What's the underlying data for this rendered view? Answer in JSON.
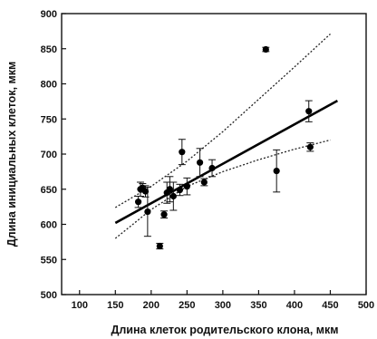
{
  "chart_data": {
    "type": "scatter",
    "xlabel": "Длина клеток  родительского клона, мкм",
    "ylabel": "Длина  инициальных клеток, мкм",
    "xlim": [
      75,
      500
    ],
    "ylim": [
      500,
      900
    ],
    "x_ticks": [
      "100",
      "150",
      "200",
      "250",
      "300",
      "350",
      "400",
      "450",
      "500"
    ],
    "y_ticks": [
      "500",
      "550",
      "600",
      "650",
      "700",
      "750",
      "800",
      "850",
      "900"
    ],
    "grid": false,
    "points": [
      {
        "x": 182,
        "y": 632,
        "err": 8
      },
      {
        "x": 185,
        "y": 650,
        "err": 10
      },
      {
        "x": 188,
        "y": 652,
        "err": 6
      },
      {
        "x": 192,
        "y": 647,
        "err": 8
      },
      {
        "x": 195,
        "y": 618,
        "err": 35
      },
      {
        "x": 212,
        "y": 569,
        "err": 4
      },
      {
        "x": 218,
        "y": 614,
        "err": 5
      },
      {
        "x": 222,
        "y": 645,
        "err": 15
      },
      {
        "x": 226,
        "y": 650,
        "err": 18
      },
      {
        "x": 231,
        "y": 640,
        "err": 20
      },
      {
        "x": 240,
        "y": 649,
        "err": 8
      },
      {
        "x": 243,
        "y": 703,
        "err": 18
      },
      {
        "x": 250,
        "y": 654,
        "err": 12
      },
      {
        "x": 268,
        "y": 688,
        "err": 20
      },
      {
        "x": 274,
        "y": 660,
        "err": 5
      },
      {
        "x": 285,
        "y": 680,
        "err": 12
      },
      {
        "x": 360,
        "y": 849,
        "err": 3
      },
      {
        "x": 375,
        "y": 676,
        "err": 30
      },
      {
        "x": 420,
        "y": 761,
        "err": 15
      },
      {
        "x": 422,
        "y": 710,
        "err": 6
      }
    ],
    "fit_line": {
      "x": [
        150,
        460
      ],
      "y": [
        602,
        776
      ]
    },
    "confidence_upper": {
      "x": [
        150,
        200,
        250,
        300,
        350,
        400,
        450
      ],
      "y": [
        624,
        654,
        690,
        732,
        778,
        824,
        871
      ]
    },
    "confidence_lower": {
      "x": [
        150,
        200,
        250,
        300,
        350,
        400,
        450
      ],
      "y": [
        580,
        621,
        654,
        675,
        692,
        707,
        720
      ]
    }
  }
}
